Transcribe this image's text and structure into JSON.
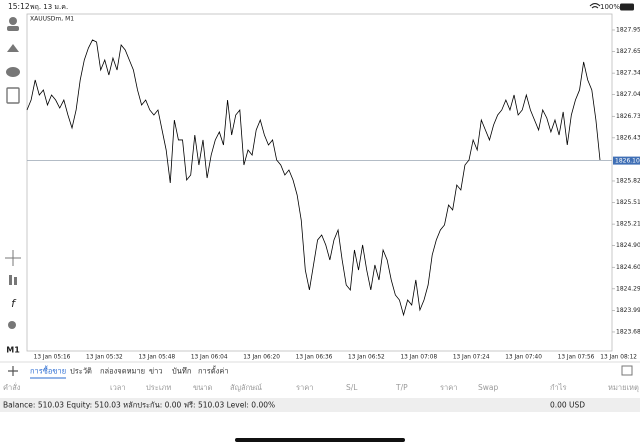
{
  "status_bar": {
    "time": "15:12",
    "date": "พฤ. 13 ม.ค.",
    "battery": "100%"
  },
  "sidebar": {
    "timeframe": "M1"
  },
  "chart_data": {
    "type": "line",
    "title": "XAUUSDm, M1",
    "xtick_labels": [
      "13 Jan 05:16",
      "13 Jan 05:32",
      "13 Jan 05:48",
      "13 Jan 06:04",
      "13 Jan 06:20",
      "13 Jan 06:36",
      "13 Jan 06:52",
      "13 Jan 07:08",
      "13 Jan 07:24",
      "13 Jan 07:40",
      "13 Jan 07:56",
      "13 Jan 08:12"
    ],
    "values": [
      1826.824,
      1826.965,
      1827.248,
      1827.036,
      1827.107,
      1826.894,
      1827.036,
      1826.965,
      1826.852,
      1826.965,
      1826.753,
      1826.569,
      1826.824,
      1827.248,
      1827.531,
      1827.7,
      1827.814,
      1827.785,
      1827.389,
      1827.531,
      1827.319,
      1827.559,
      1827.389,
      1827.743,
      1827.672,
      1827.531,
      1827.389,
      1827.107,
      1826.894,
      1826.965,
      1826.824,
      1826.753,
      1826.824,
      1826.541,
      1826.258,
      1825.792,
      1826.682,
      1826.4,
      1826.4,
      1825.834,
      1825.905,
      1826.47,
      1826.046,
      1826.4,
      1825.862,
      1826.187,
      1826.4,
      1826.513,
      1826.329,
      1826.965,
      1826.47,
      1826.753,
      1826.824,
      1826.046,
      1826.258,
      1826.187,
      1826.541,
      1826.682,
      1826.47,
      1826.329,
      1826.4,
      1826.117,
      1826.046,
      1825.905,
      1825.975,
      1825.834,
      1825.622,
      1825.268,
      1824.561,
      1824.279,
      1824.632,
      1824.986,
      1825.056,
      1824.915,
      1824.703,
      1824.986,
      1825.127,
      1824.703,
      1824.349,
      1824.279,
      1824.844,
      1824.561,
      1824.915,
      1824.561,
      1824.279,
      1824.632,
      1824.42,
      1824.844,
      1824.703,
      1824.42,
      1824.208,
      1824.137,
      1823.925,
      1824.137,
      1824.066,
      1824.42,
      1823.996,
      1824.137,
      1824.349,
      1824.773,
      1824.986,
      1825.127,
      1825.198,
      1825.48,
      1825.41,
      1825.763,
      1825.693,
      1826.046,
      1826.117,
      1826.4,
      1826.258,
      1826.682,
      1826.541,
      1826.4,
      1826.612,
      1826.753,
      1826.824,
      1826.965,
      1826.824,
      1827.036,
      1826.753,
      1826.824,
      1827.036,
      1826.824,
      1826.682,
      1826.541,
      1826.824,
      1826.711,
      1826.513,
      1826.682,
      1826.47,
      1826.796,
      1826.329,
      1826.753,
      1826.965,
      1827.107,
      1827.503,
      1827.248,
      1827.107,
      1826.682,
      1826.117
    ],
    "color": "#000000",
    "ylim": [
      1823.43,
      1828.167
    ],
    "yticks": [
      1827.955,
      {
        "value": 1827.65,
        "label": "1827.650"
      },
      1827.345,
      {
        "value": 1827.04,
        "label": "1827.040"
      },
      1826.735,
      {
        "value": 1826.43,
        "label": "1826.430"
      },
      {
        "value": 1825.82,
        "label": "1825.820"
      },
      1825.515,
      {
        "value": 1825.21,
        "label": "1825.210"
      },
      1824.905,
      {
        "value": 1824.6,
        "label": "1824.600"
      },
      1824.295,
      {
        "value": 1823.99,
        "label": "1823.990"
      },
      1823.685
    ],
    "current_price": 1826.108,
    "current_price_color": "#3f6fb5"
  },
  "toolbox": {
    "tabs": [
      "การซื้อขาย",
      "ประวัติ",
      "กล่องจดหมาย",
      "ข่าว",
      "บันทึก",
      "การตั้งค่า"
    ],
    "columns": [
      "คำสั่ง",
      "เวลา",
      "ประเภท",
      "ขนาด",
      "สัญลักษณ์",
      "ราคา",
      "S/L",
      "T/P",
      "ราคา",
      "Swap",
      "กำไร",
      "หมายเหตุ"
    ],
    "summary": "Balance: 510.03 Equity: 510.03 หลักประกัน: 0.00 ฟรี: 510.03 Level: 0.00%",
    "profit": "0.00",
    "currency": "USD"
  }
}
